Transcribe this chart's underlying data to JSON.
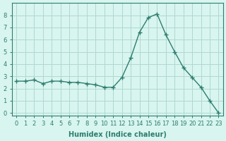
{
  "x": [
    0,
    1,
    2,
    3,
    4,
    5,
    6,
    7,
    8,
    9,
    10,
    11,
    12,
    13,
    14,
    15,
    16,
    17,
    18,
    19,
    20,
    21,
    22,
    23
  ],
  "y": [
    2.6,
    2.6,
    2.7,
    2.4,
    2.6,
    2.6,
    2.5,
    2.5,
    2.4,
    2.3,
    2.1,
    2.1,
    2.9,
    4.5,
    6.6,
    7.8,
    8.1,
    6.4,
    5.0,
    3.7,
    2.9,
    2.1,
    1.0,
    0.0
  ],
  "line_color": "#2e7d6e",
  "marker": "+",
  "bg_color": "#d8f5f0",
  "grid_color": "#b0d8d0",
  "xlabel": "Humidex (Indice chaleur)",
  "xlim": [
    -0.5,
    23.5
  ],
  "ylim": [
    -0.2,
    9.0
  ],
  "yticks": [
    0,
    1,
    2,
    3,
    4,
    5,
    6,
    7,
    8
  ],
  "xticks": [
    0,
    1,
    2,
    3,
    4,
    5,
    6,
    7,
    8,
    9,
    10,
    11,
    12,
    13,
    14,
    15,
    16,
    17,
    18,
    19,
    20,
    21,
    22,
    23
  ],
  "tick_color": "#2e7d6e",
  "label_color": "#2e7d6e",
  "axis_color": "#2e7d6e",
  "fontsize_ticks": 6,
  "fontsize_label": 7
}
